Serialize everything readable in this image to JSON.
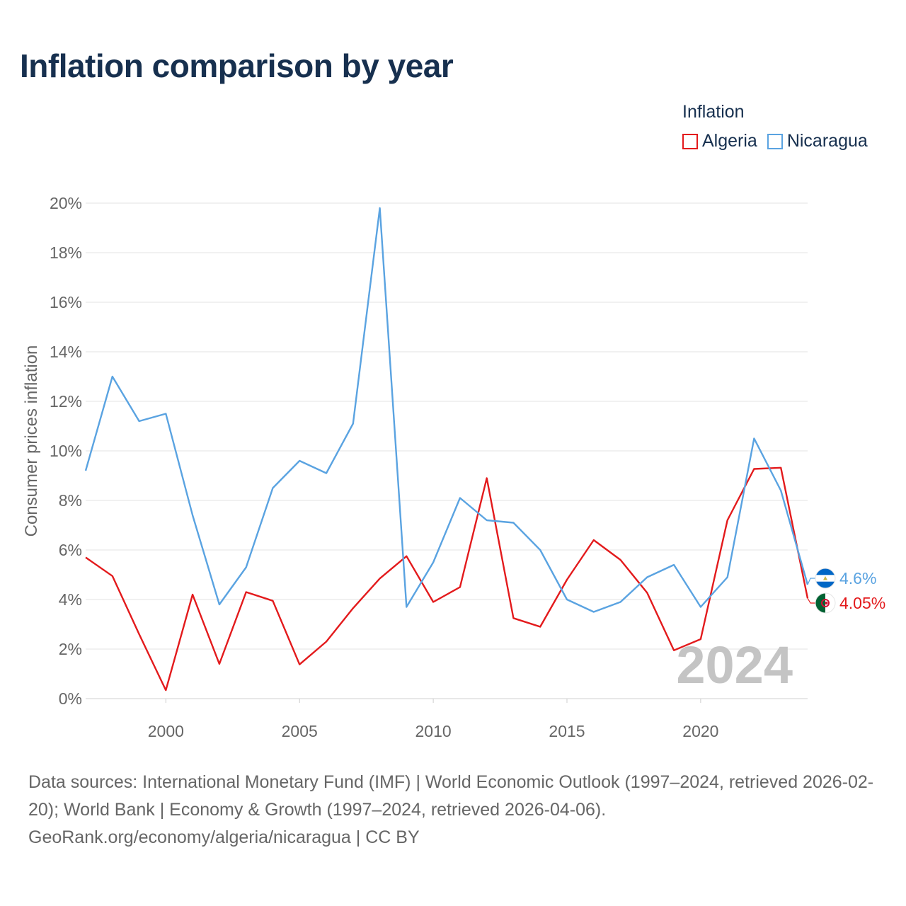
{
  "title": "Inflation comparison by year",
  "legend": {
    "title": "Inflation",
    "items": [
      {
        "label": "Algeria",
        "color": "#e31a1c"
      },
      {
        "label": "Nicaragua",
        "color": "#5aa3e1"
      }
    ]
  },
  "watermark_year": "2024",
  "footer": {
    "sources": "Data sources: International Monetary Fund (IMF) | World Economic Outlook (1997–2024, retrieved 2026-02-20); World Bank | Economy & Growth (1997–2024, retrieved 2026-04-06).",
    "link": "GeoRank.org/economy/algeria/nicaragua | CC BY"
  },
  "chart_data": {
    "type": "line",
    "title": "Inflation comparison by year",
    "xlabel": "",
    "ylabel": "Consumer prices inflation",
    "x": [
      1997,
      1998,
      1999,
      2000,
      2001,
      2002,
      2003,
      2004,
      2005,
      2006,
      2007,
      2008,
      2009,
      2010,
      2011,
      2012,
      2013,
      2014,
      2015,
      2016,
      2017,
      2018,
      2019,
      2020,
      2021,
      2022,
      2023,
      2024
    ],
    "xlim": [
      1997,
      2024
    ],
    "ylim": [
      0,
      20
    ],
    "x_ticks": [
      2000,
      2005,
      2010,
      2015,
      2020
    ],
    "y_ticks": [
      0,
      2,
      4,
      6,
      8,
      10,
      12,
      14,
      16,
      18,
      20
    ],
    "y_tick_labels": [
      "0%",
      "2%",
      "4%",
      "6%",
      "8%",
      "10%",
      "12%",
      "14%",
      "16%",
      "18%",
      "20%"
    ],
    "grid": true,
    "legend_position": "top-right",
    "series": [
      {
        "name": "Algeria",
        "color": "#e31a1c",
        "values": [
          5.7,
          4.95,
          2.6,
          0.34,
          4.2,
          1.4,
          4.3,
          3.95,
          1.38,
          2.3,
          3.65,
          4.85,
          5.75,
          3.9,
          4.5,
          8.9,
          3.25,
          2.9,
          4.8,
          6.4,
          5.6,
          4.27,
          1.95,
          2.4,
          7.2,
          9.27,
          9.32,
          4.05
        ],
        "end_label": "4.05%"
      },
      {
        "name": "Nicaragua",
        "color": "#5aa3e1",
        "values": [
          9.2,
          13.0,
          11.2,
          11.5,
          7.4,
          3.8,
          5.3,
          8.5,
          9.6,
          9.1,
          11.1,
          19.8,
          3.7,
          5.5,
          8.1,
          7.2,
          7.1,
          6.0,
          4.0,
          3.5,
          3.9,
          4.9,
          5.4,
          3.7,
          4.9,
          10.5,
          8.4,
          4.6
        ],
        "end_label": "4.6%"
      }
    ]
  }
}
